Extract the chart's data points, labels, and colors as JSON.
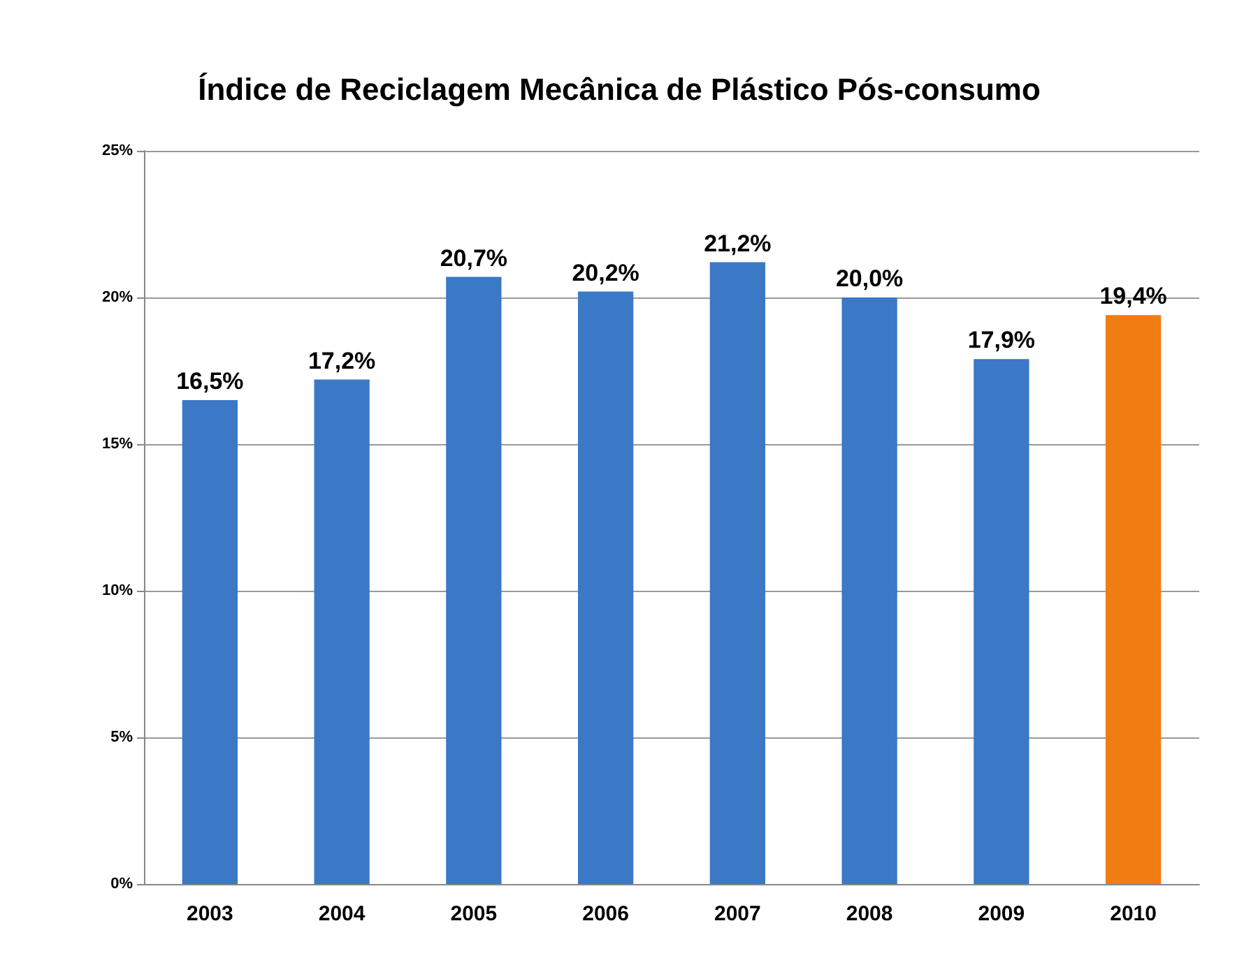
{
  "chart_data": {
    "type": "bar",
    "title": "Índice de Reciclagem Mecânica de Plástico Pós-consumo",
    "categories": [
      "2003",
      "2004",
      "2005",
      "2006",
      "2007",
      "2008",
      "2009",
      "2010"
    ],
    "values": [
      16.5,
      17.2,
      20.7,
      20.2,
      21.2,
      20.0,
      17.9,
      19.4
    ],
    "colors": [
      "#3b78c6",
      "#3b78c6",
      "#3b78c6",
      "#3b78c6",
      "#3b78c6",
      "#3b78c6",
      "#3b78c6",
      "#f07c12"
    ],
    "value_labels": [
      "16,5%",
      "17,2%",
      "20,7%",
      "20,2%",
      "21,2%",
      "20,0%",
      "17,9%",
      "19,4%"
    ],
    "ylim": [
      0,
      25
    ],
    "yticks": [
      {
        "value": 0,
        "label": "0%"
      },
      {
        "value": 5,
        "label": "5%"
      },
      {
        "value": 10,
        "label": "10%"
      },
      {
        "value": 15,
        "label": "15%"
      },
      {
        "value": 20,
        "label": "20%"
      },
      {
        "value": 25,
        "label": "25%"
      }
    ],
    "grid": "y"
  }
}
